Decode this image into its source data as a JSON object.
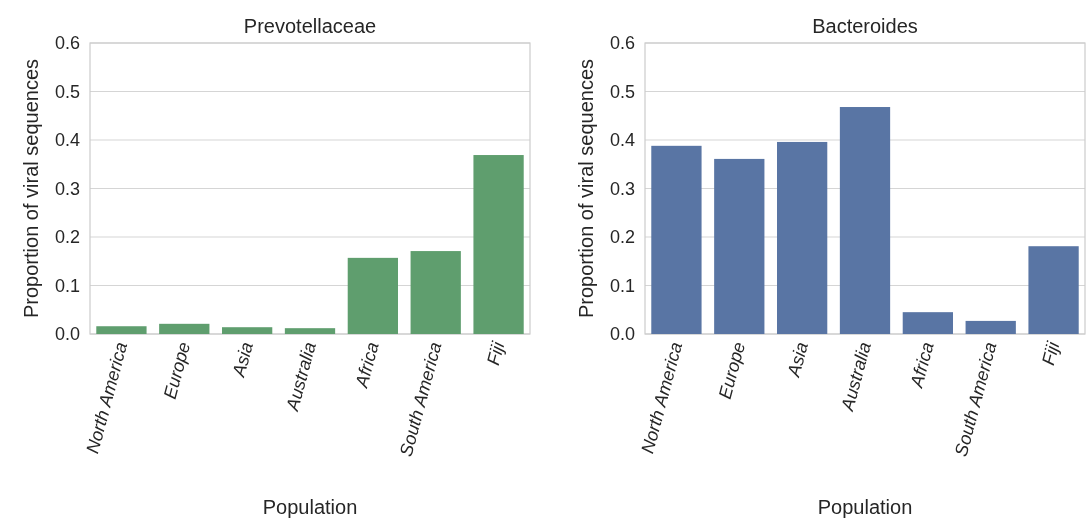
{
  "chart_data": [
    {
      "type": "bar",
      "title": "Prevotellaceae",
      "xlabel": "Population",
      "ylabel": "Proportion of viral sequences",
      "categories": [
        "North America",
        "Europe",
        "Asia",
        "Australia",
        "Africa",
        "South America",
        "Fiji"
      ],
      "values": [
        0.016,
        0.021,
        0.014,
        0.012,
        0.157,
        0.171,
        0.369
      ],
      "color": "#5f9e6e",
      "ylim": [
        0,
        0.6
      ],
      "yticks": [
        {
          "value": 0,
          "label": "0.0"
        },
        0.1,
        0.2,
        0.3,
        0.4,
        0.5,
        0.6
      ],
      "grid": "y"
    },
    {
      "type": "bar",
      "title": "Bacteroides",
      "xlabel": "Population",
      "ylabel": "Proportion of viral sequences",
      "categories": [
        "North America",
        "Europe",
        "Asia",
        "Australia",
        "Africa",
        "South America",
        "Fiji"
      ],
      "values": [
        0.388,
        0.361,
        0.396,
        0.468,
        0.045,
        0.027,
        0.181
      ],
      "color": "#5975a4",
      "ylim": [
        0,
        0.6
      ],
      "yticks": [
        {
          "value": 0,
          "label": "0.0"
        },
        0.1,
        0.2,
        0.3,
        0.4,
        0.5,
        0.6
      ],
      "grid": "y"
    }
  ]
}
